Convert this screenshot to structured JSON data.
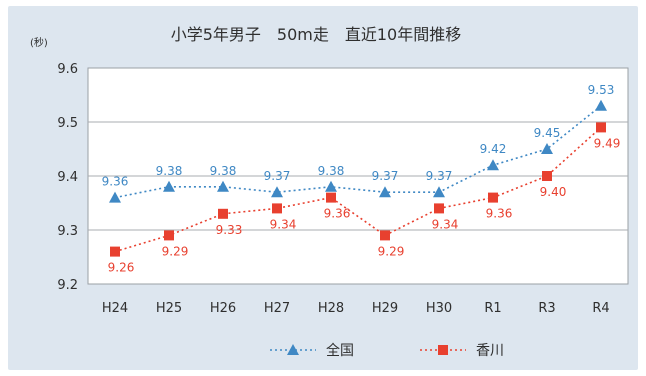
{
  "chart_data": {
    "type": "line",
    "title": "小学5年男子　50m走　直近10年間推移",
    "ylabel": "(秒)",
    "ylim": [
      9.2,
      9.6
    ],
    "yticks": [
      "9.2",
      "9.3",
      "9.4",
      "9.5",
      "9.6"
    ],
    "grid": true,
    "legend": "bottom",
    "categories": [
      "H24",
      "H25",
      "H26",
      "H27",
      "H28",
      "H29",
      "H30",
      "R1",
      "R3",
      "R4"
    ],
    "series": [
      {
        "name": "全国",
        "color": "#3f88c4",
        "marker": "triangle",
        "line": "dotted",
        "values": [
          9.36,
          9.38,
          9.38,
          9.37,
          9.38,
          9.37,
          9.37,
          9.42,
          9.45,
          9.53
        ],
        "labels": [
          "9.36",
          "9.38",
          "9.38",
          "9.37",
          "9.38",
          "9.37",
          "9.37",
          "9.42",
          "9.45",
          "9.53"
        ]
      },
      {
        "name": "香川",
        "color": "#e8402f",
        "marker": "square",
        "line": "dotted",
        "values": [
          9.26,
          9.29,
          9.33,
          9.34,
          9.36,
          9.29,
          9.34,
          9.36,
          9.4,
          9.49
        ],
        "labels": [
          "9.26",
          "9.29",
          "9.33",
          "9.34",
          "9.36",
          "9.29",
          "9.34",
          "9.36",
          "9.40",
          "9.49"
        ]
      }
    ]
  }
}
